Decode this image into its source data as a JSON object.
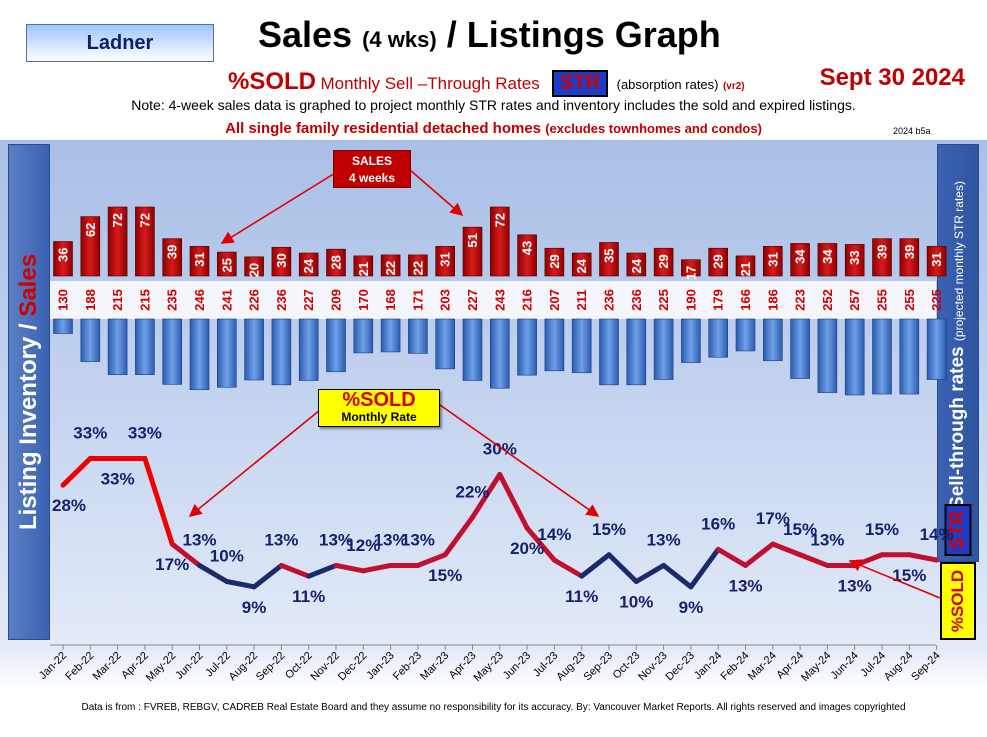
{
  "header": {
    "region": "Ladner",
    "title_main": "Sales",
    "title_small": "(4 wks)",
    "title_rest": "/ Listings Graph",
    "pct_sold": "%SOLD",
    "subtitle_desc": "Monthly Sell –Through Rates",
    "str_label": "STR",
    "absorption": "(absorption rates)",
    "version_tag": "(vr2)",
    "date": "Sept  30  2024",
    "note": "Note: 4-week sales data is graphed to project monthly STR rates and inventory includes the sold and expired listings.",
    "scope_main": "All single family residential detached homes",
    "scope_small": "(excludes townhomes and condos)",
    "edition": "2024 b5a"
  },
  "side_labels": {
    "left_inventory": "Listing Inventory",
    "left_sep": " / ",
    "left_sales": "Sales",
    "right_title": "Sell-through rates",
    "right_small": "(projected monthly STR rates)",
    "right_str": "STR",
    "right_sold": "%SOLD"
  },
  "callouts": {
    "sales_line1": "SALES",
    "sales_line2": "4  weeks",
    "sold_big": "%SOLD",
    "sold_small": "Monthly Rate"
  },
  "footer": "Data is from : FVREB, REBGV, CADREB Real Estate Board and they assume no responsibility for its accuracy. By: Vancouver Market Reports. All rights reserved and  images copyrighted",
  "colors": {
    "sales_bar": "#c00000",
    "inventory_bar": "#4a7fd0",
    "line_start": "#f00000",
    "line_low": "#1a2a6c",
    "label_dark": "#16206b"
  },
  "chart_data": {
    "type": "bar",
    "categories": [
      "Jan-22",
      "Feb-22",
      "Mar-22",
      "Apr-22",
      "May-22",
      "Jun-22",
      "Jul-22",
      "Aug-22",
      "Sep-22",
      "Oct-22",
      "Nov-22",
      "Dec-22",
      "Jan-23",
      "Feb-23",
      "Mar-23",
      "Apr-23",
      "May-23",
      "Jun-23",
      "Jul-23",
      "Aug-23",
      "Sep-23",
      "Oct-23",
      "Nov-23",
      "Dec-23",
      "Jan-24",
      "Feb-24",
      "Mar-24",
      "Apr-24",
      "May-24",
      "Jun-24",
      "Jul-24",
      "Aug-24",
      "Sep-24"
    ],
    "series": [
      {
        "name": "SALES 4 weeks",
        "type": "bar",
        "values": [
          36,
          62,
          72,
          72,
          39,
          31,
          25,
          20,
          30,
          24,
          28,
          21,
          22,
          22,
          31,
          51,
          72,
          43,
          29,
          24,
          35,
          24,
          29,
          17,
          29,
          21,
          31,
          34,
          34,
          33,
          39,
          39,
          31
        ]
      },
      {
        "name": "Listing Inventory",
        "type": "bar",
        "values": [
          130,
          188,
          215,
          215,
          235,
          246,
          241,
          226,
          236,
          227,
          209,
          170,
          168,
          171,
          203,
          227,
          243,
          216,
          207,
          211,
          236,
          236,
          225,
          190,
          179,
          166,
          186,
          223,
          252,
          257,
          255,
          255,
          225
        ]
      },
      {
        "name": "%SOLD Monthly Rate",
        "type": "line",
        "values": [
          28,
          33,
          33,
          33,
          17,
          13,
          10,
          9,
          13,
          11,
          13,
          12,
          13,
          13,
          15,
          22,
          30,
          20,
          14,
          11,
          15,
          10,
          13,
          9,
          16,
          13,
          17,
          15,
          13,
          13,
          15,
          15,
          14
        ],
        "unit": "%"
      }
    ]
  }
}
